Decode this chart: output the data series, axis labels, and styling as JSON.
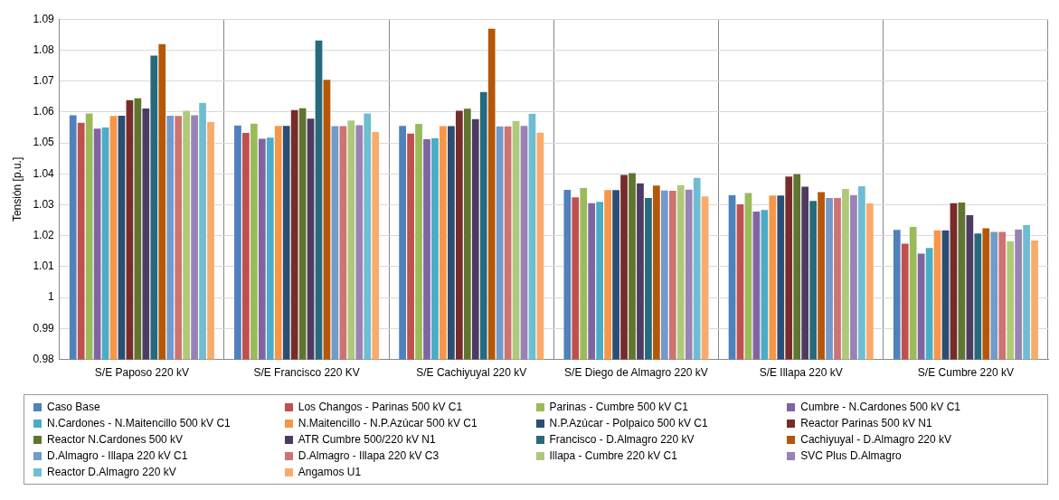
{
  "chart_data": {
    "type": "bar",
    "ylabel": "Tensión [p.u.]",
    "categories": [
      "S/E Paposo 220 kV",
      "S/E Francisco 220 KV",
      "S/E Cachiyuyal 220 kV",
      "S/E Diego de Almagro 220 kV",
      "S/E Illapa 220 kV",
      "S/E Cumbre 220 kV"
    ],
    "ylim": [
      0.98,
      1.09
    ],
    "yticks": [
      0.98,
      0.99,
      1,
      1.01,
      1.02,
      1.03,
      1.04,
      1.05,
      1.06,
      1.07,
      1.08,
      1.09
    ],
    "grid": true,
    "legend": "bottom",
    "series": [
      {
        "name": "Caso Base",
        "color": "#4f81bd",
        "values": [
          1.0591,
          1.0558,
          1.0557,
          1.035,
          1.0333,
          1.0221
        ]
      },
      {
        "name": "Los Changos - Parinas 500 kV C1",
        "color": "#c0504d",
        "values": [
          1.0567,
          1.0534,
          1.0532,
          1.0326,
          1.0303,
          1.0176
        ]
      },
      {
        "name": "Parinas - Cumbre 500 kV C1",
        "color": "#9bbb59",
        "values": [
          1.0597,
          1.0564,
          1.0563,
          1.0356,
          1.034,
          1.023
        ]
      },
      {
        "name": "Cumbre - N.Cardones 500 kV C1",
        "color": "#8064a2",
        "values": [
          1.0548,
          1.0515,
          1.0514,
          1.0307,
          1.028,
          1.0144
        ]
      },
      {
        "name": "N.Cardones - N.Maitencillo 500 kV C1",
        "color": "#4bacc6",
        "values": [
          1.0552,
          1.0519,
          1.0517,
          1.0311,
          1.0285,
          1.0162
        ]
      },
      {
        "name": "N.Maitencillo - N.P.Azúcar 500 kV C1",
        "color": "#f79646",
        "values": [
          1.0589,
          1.0557,
          1.0556,
          1.0349,
          1.0332,
          1.0219
        ]
      },
      {
        "name": "N.P.Azúcar - Polpaico 500 kV C1",
        "color": "#2c4d75",
        "values": [
          1.059,
          1.0557,
          1.0556,
          1.0349,
          1.0332,
          1.0219
        ]
      },
      {
        "name": "Reactor Parinas 500 kV N1",
        "color": "#772c2a",
        "values": [
          1.064,
          1.0608,
          1.0606,
          1.0398,
          1.0393,
          1.0307
        ]
      },
      {
        "name": "Reactor N.Cardones 500 kV",
        "color": "#5f7530",
        "values": [
          1.0646,
          1.0614,
          1.0612,
          1.0404,
          1.0401,
          1.0309
        ]
      },
      {
        "name": "ATR Cumbre 500/220 kV N1",
        "color": "#4d3b62",
        "values": [
          1.0613,
          1.058,
          1.0579,
          1.0371,
          1.036,
          1.0268
        ]
      },
      {
        "name": "Francisco - D.Almagro 220 kV",
        "color": "#276a7c",
        "values": [
          1.0784,
          1.0833,
          1.0666,
          1.0324,
          1.0314,
          1.0209
        ]
      },
      {
        "name": "Cachiyuyal - D.Almagro 220 kV",
        "color": "#b65708",
        "values": [
          1.0821,
          1.0706,
          1.0871,
          1.0364,
          1.0343,
          1.0226
        ]
      },
      {
        "name": "D.Almagro - Illapa 220 kV C1",
        "color": "#729aca",
        "values": [
          1.059,
          1.0556,
          1.0555,
          1.0348,
          1.0324,
          1.0214
        ]
      },
      {
        "name": "D.Almagro - Illapa 220 kV C3",
        "color": "#cd7371",
        "values": [
          1.0589,
          1.0556,
          1.0555,
          1.0347,
          1.0324,
          1.0214
        ]
      },
      {
        "name": "Illapa - Cumbre 220 kV C1",
        "color": "#afc97a",
        "values": [
          1.0606,
          1.0574,
          1.0573,
          1.0365,
          1.0353,
          1.0184
        ]
      },
      {
        "name": "SVC Plus D.Almagro",
        "color": "#9983b5",
        "values": [
          1.0591,
          1.0559,
          1.0557,
          1.0351,
          1.0333,
          1.0222
        ]
      },
      {
        "name": "Reactor D.Almagro 220 kV",
        "color": "#6fbdd1",
        "values": [
          1.0631,
          1.0597,
          1.0596,
          1.0389,
          1.0362,
          1.0236
        ]
      },
      {
        "name": "Angamos U1",
        "color": "#f9ab6b",
        "values": [
          1.0569,
          1.0537,
          1.0535,
          1.0329,
          1.0306,
          1.0186
        ]
      }
    ]
  }
}
